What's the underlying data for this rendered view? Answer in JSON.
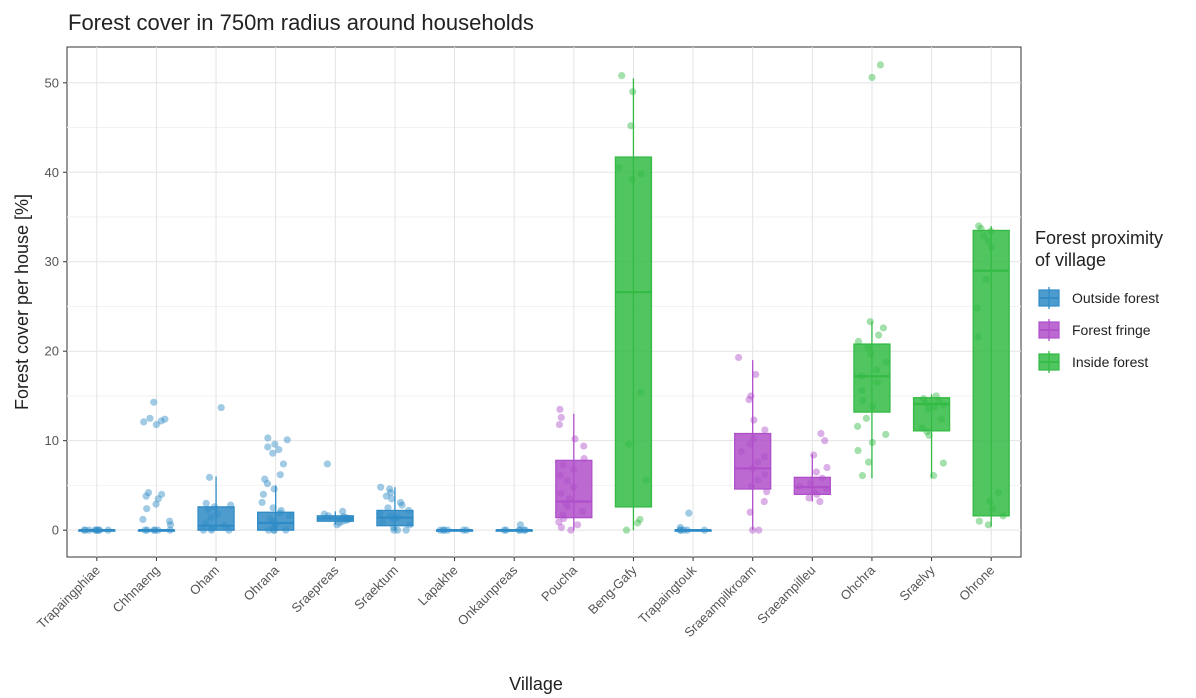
{
  "chart_data": {
    "type": "boxplot",
    "title": "Forest cover in 750m radius around households",
    "xlabel": "Village",
    "ylabel": "Forest cover per house [%]",
    "ylim": [
      -3,
      54
    ],
    "yticks": [
      0,
      10,
      20,
      30,
      40,
      50
    ],
    "grid": true,
    "legend": {
      "title_lines": [
        "Forest proximity",
        "of village"
      ],
      "placement": "right",
      "entries": [
        {
          "label": "Outside forest",
          "color": "#2f8bc6"
        },
        {
          "label": "Forest fringe",
          "color": "#b04fca"
        },
        {
          "label": "Inside forest",
          "color": "#33bb44"
        }
      ]
    },
    "categories": [
      "Trapaingphiae",
      "Chhnaeng",
      "Oham",
      "Ohrana",
      "Sraepreas",
      "Sraektum",
      "Lapakhe",
      "Onkaunpreas",
      "Poucha",
      "Beng-Gafy",
      "Trapaingtouk",
      "Sraeampilkroam",
      "Sraeampilleu",
      "Ohchra",
      "Sraelvy",
      "Ohrone"
    ],
    "group": [
      "Outside forest",
      "Outside forest",
      "Outside forest",
      "Outside forest",
      "Outside forest",
      "Outside forest",
      "Outside forest",
      "Outside forest",
      "Forest fringe",
      "Inside forest",
      "Outside forest",
      "Forest fringe",
      "Forest fringe",
      "Inside forest",
      "Inside forest",
      "Inside forest"
    ],
    "boxes": [
      {
        "q1": 0,
        "median": 0,
        "q3": 0,
        "whisker_low": 0,
        "whisker_high": 0
      },
      {
        "q1": 0,
        "median": 0,
        "q3": 0,
        "whisker_low": 0,
        "whisker_high": 0
      },
      {
        "q1": 0,
        "median": 0.5,
        "q3": 2.6,
        "whisker_low": 0,
        "whisker_high": 6
      },
      {
        "q1": 0,
        "median": 0.8,
        "q3": 2.0,
        "whisker_low": 0,
        "whisker_high": 5
      },
      {
        "q1": 1.0,
        "median": 1.3,
        "q3": 1.6,
        "whisker_low": 0.6,
        "whisker_high": 2.1
      },
      {
        "q1": 0.5,
        "median": 1.4,
        "q3": 2.2,
        "whisker_low": 0,
        "whisker_high": 4.8
      },
      {
        "q1": 0,
        "median": 0,
        "q3": 0,
        "whisker_low": 0,
        "whisker_high": 0
      },
      {
        "q1": 0,
        "median": 0,
        "q3": 0,
        "whisker_low": 0,
        "whisker_high": 0
      },
      {
        "q1": 1.4,
        "median": 3.2,
        "q3": 7.8,
        "whisker_low": 0,
        "whisker_high": 13
      },
      {
        "q1": 2.6,
        "median": 26.6,
        "q3": 41.7,
        "whisker_low": 0,
        "whisker_high": 50.5
      },
      {
        "q1": 0,
        "median": 0,
        "q3": 0,
        "whisker_low": 0,
        "whisker_high": 0
      },
      {
        "q1": 4.6,
        "median": 6.9,
        "q3": 10.8,
        "whisker_low": 0,
        "whisker_high": 19
      },
      {
        "q1": 4.0,
        "median": 4.8,
        "q3": 5.9,
        "whisker_low": 3.2,
        "whisker_high": 8.5
      },
      {
        "q1": 13.2,
        "median": 17.2,
        "q3": 20.8,
        "whisker_low": 5.8,
        "whisker_high": 23.3
      },
      {
        "q1": 11.1,
        "median": 14.1,
        "q3": 14.8,
        "whisker_low": 5.8,
        "whisker_high": 15.2
      },
      {
        "q1": 1.6,
        "median": 29.0,
        "q3": 33.5,
        "whisker_low": 0.4,
        "whisker_high": 34.0
      }
    ],
    "points": [
      [
        0,
        0,
        0,
        0,
        0,
        0,
        0,
        0,
        0
      ],
      [
        14.3,
        12.5,
        12.4,
        12.2,
        12.1,
        11.8,
        4.2,
        4.0,
        3.8,
        3.5,
        2.9,
        2.4,
        1.2,
        1.0,
        0.6,
        0,
        0,
        0,
        0,
        0,
        0
      ],
      [
        13.7,
        5.9,
        3.0,
        2.8,
        2.6,
        2.3,
        1.8,
        1.4,
        0.8,
        0.5,
        0.2,
        0,
        0,
        0
      ],
      [
        10.3,
        10.1,
        9.6,
        9.3,
        9.0,
        8.6,
        7.4,
        6.2,
        5.7,
        5.2,
        4.6,
        4.0,
        3.1,
        2.5,
        2.2,
        1.9,
        1.6,
        1.2,
        0.9,
        0.6,
        0.3,
        0,
        0,
        0,
        0
      ],
      [
        7.4,
        2.1,
        1.8,
        1.6,
        1.5,
        1.4,
        1.3,
        1.2,
        1.1,
        1.0,
        0.8,
        0.6
      ],
      [
        4.8,
        4.6,
        4.2,
        3.8,
        3.5,
        3.1,
        2.8,
        2.5,
        2.2,
        1.9,
        1.6,
        1.4,
        1.2,
        0.9,
        0.6,
        0.3,
        0,
        0,
        0
      ],
      [
        0,
        0,
        0,
        0,
        0,
        0
      ],
      [
        0.6,
        0,
        0,
        0,
        0,
        0,
        0
      ],
      [
        13.5,
        12.6,
        11.8,
        10.2,
        9.4,
        8.0,
        7.3,
        6.8,
        6.1,
        5.5,
        4.8,
        4.1,
        3.5,
        3.0,
        2.6,
        2.1,
        1.7,
        1.3,
        0.9,
        0.6,
        0.3,
        0
      ],
      [
        50.8,
        49.0,
        45.2,
        40.5,
        39.8,
        39.2,
        15.4,
        9.6,
        5.6,
        1.2,
        0.8,
        0
      ],
      [
        1.9,
        0.3,
        0,
        0,
        0,
        0,
        0
      ],
      [
        19.3,
        17.4,
        15.0,
        14.6,
        12.3,
        11.2,
        10.2,
        9.6,
        8.8,
        8.2,
        7.6,
        6.9,
        6.2,
        5.6,
        4.9,
        4.3,
        3.2,
        2.0,
        0,
        0
      ],
      [
        10.8,
        10.0,
        8.4,
        7.0,
        6.5,
        5.8,
        5.2,
        4.9,
        4.6,
        4.3,
        4.0,
        3.6,
        3.2
      ],
      [
        52.0,
        50.6,
        23.3,
        22.6,
        21.8,
        21.1,
        20.4,
        19.7,
        18.8,
        17.9,
        17.2,
        16.5,
        15.6,
        14.5,
        13.8,
        12.5,
        11.6,
        10.7,
        9.8,
        8.9,
        7.6,
        6.1
      ],
      [
        15.0,
        14.7,
        14.4,
        14.2,
        14.0,
        13.8,
        13.5,
        12.4,
        11.4,
        11.0,
        10.6,
        7.5,
        6.1
      ],
      [
        34.0,
        33.7,
        33.4,
        32.9,
        32.3,
        31.6,
        28.0,
        24.8,
        21.6,
        4.2,
        3.2,
        2.4,
        1.6,
        1.0,
        0.6
      ]
    ]
  }
}
